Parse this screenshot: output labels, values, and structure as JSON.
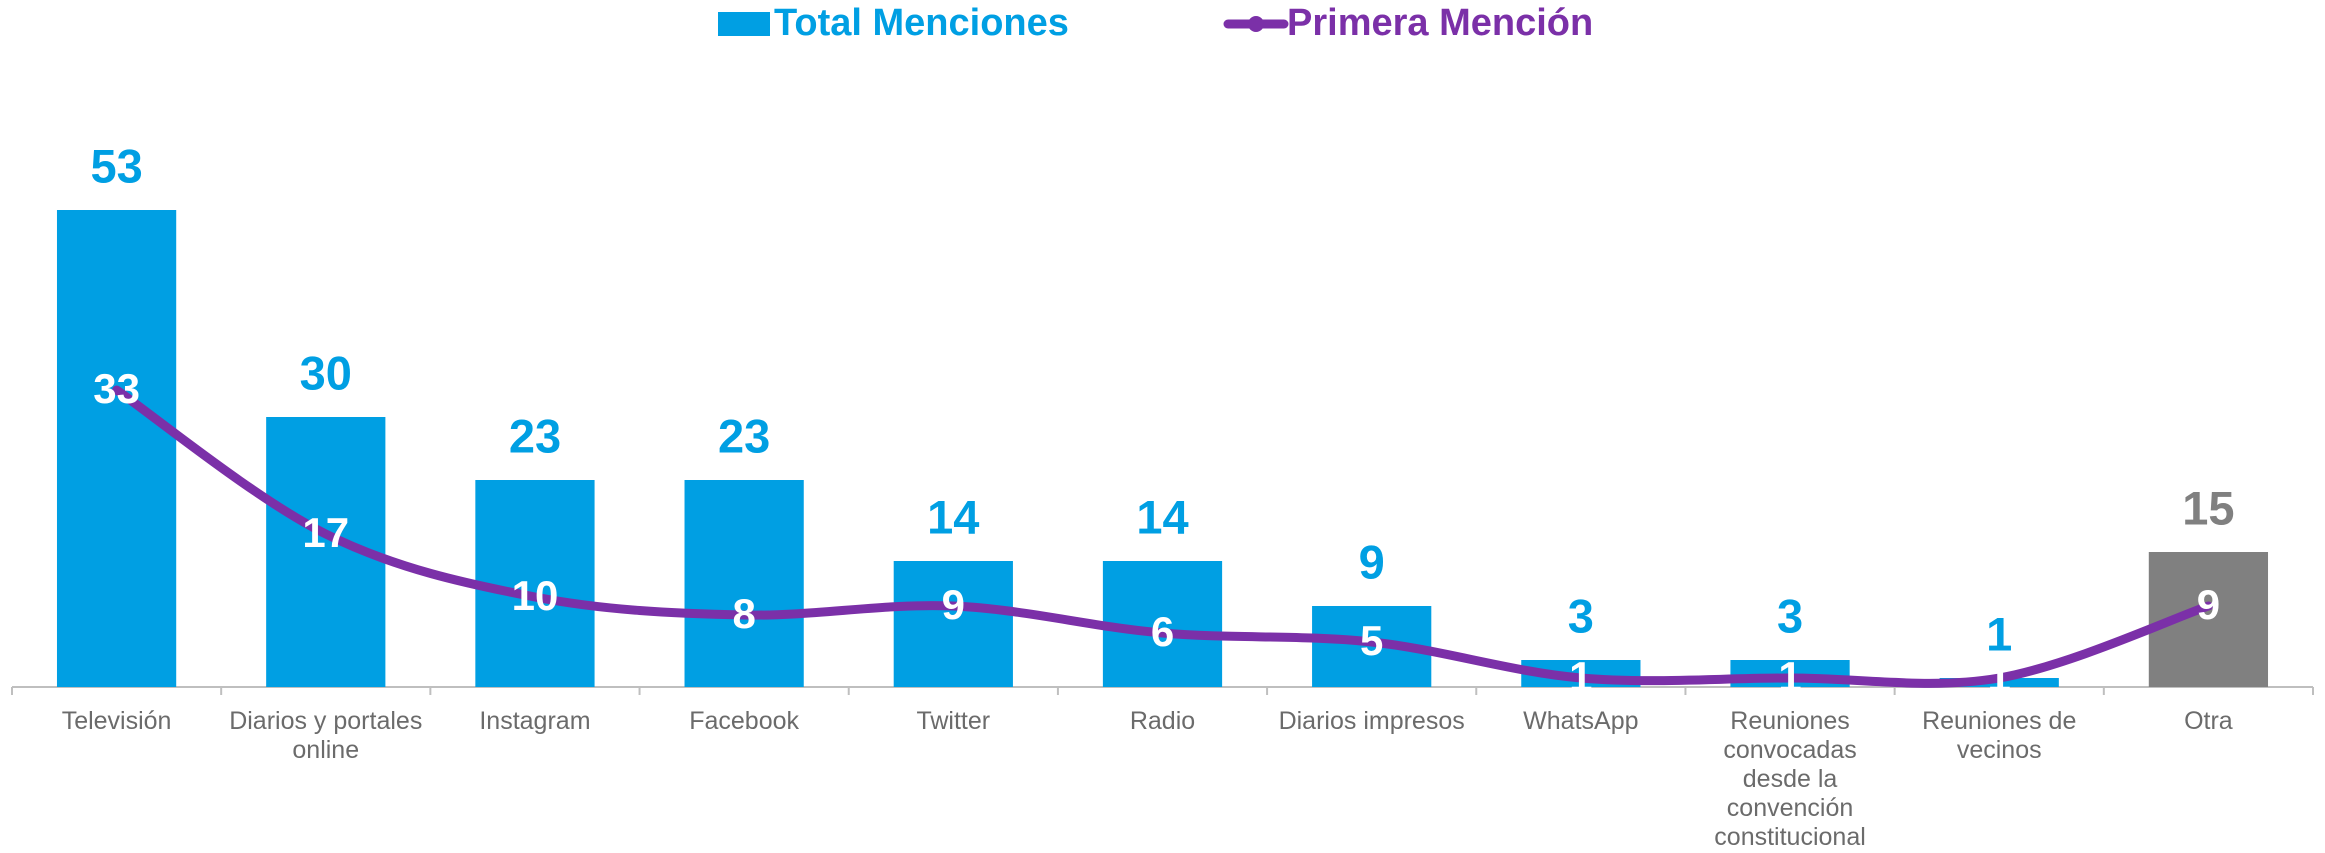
{
  "chart_data": {
    "type": "bar_line",
    "categories": [
      "Televisión",
      "Diarios y portales online",
      "Instagram",
      "Facebook",
      "Twitter",
      "Radio",
      "Diarios impresos",
      "WhatsApp",
      "Reuniones convocadas desde la convención constitucional",
      "Reuniones de vecinos",
      "Otra"
    ],
    "series": [
      {
        "name": "Total Menciones",
        "type": "bar",
        "color": "#009fe3",
        "colors": [
          "#009fe3",
          "#009fe3",
          "#009fe3",
          "#009fe3",
          "#009fe3",
          "#009fe3",
          "#009fe3",
          "#009fe3",
          "#009fe3",
          "#009fe3",
          "#808080"
        ],
        "values": [
          53,
          30,
          23,
          23,
          14,
          14,
          9,
          3,
          3,
          1,
          15
        ]
      },
      {
        "name": "Primera Mención",
        "type": "line",
        "color": "#7b30a8",
        "values": [
          33,
          17,
          10,
          8,
          9,
          6,
          5,
          1,
          1,
          1,
          9
        ]
      }
    ],
    "ylim": [
      0,
      60
    ]
  }
}
